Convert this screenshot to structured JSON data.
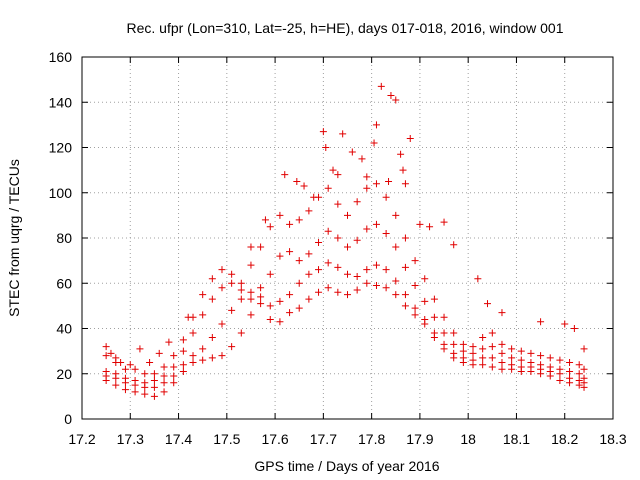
{
  "chart_data": {
    "type": "scatter",
    "title": "Rec. ufpr (Lon=310, Lat=-25, h=HE), days 017-018, 2016, window 001",
    "xlabel": "GPS time / Days of year 2016",
    "ylabel": "STEC from uqrg / TECUs",
    "xlim": [
      17.2,
      18.3
    ],
    "ylim": [
      0,
      160
    ],
    "xticks": [
      17.2,
      17.3,
      17.4,
      17.5,
      17.6,
      17.7,
      17.8,
      17.9,
      18.0,
      18.1,
      18.2,
      18.3
    ],
    "xtick_labels": [
      "17.2",
      "17.3",
      "17.4",
      "17.5",
      "17.6",
      "17.7",
      "17.8",
      "17.9",
      "18",
      "18.1",
      "18.2",
      "18.3"
    ],
    "yticks": [
      0,
      20,
      40,
      60,
      80,
      100,
      120,
      140,
      160
    ],
    "ytick_labels": [
      "0",
      "20",
      "40",
      "60",
      "80",
      "100",
      "120",
      "140",
      "160"
    ],
    "grid": true,
    "marker": "+",
    "marker_color": "#e00000",
    "series": [
      {
        "name": "STEC",
        "x": [
          17.25,
          17.27,
          17.29,
          17.31,
          17.33,
          17.35,
          17.37,
          17.39,
          17.41,
          17.43,
          17.45,
          17.47,
          17.49,
          17.51,
          17.53,
          17.55,
          17.57,
          17.59,
          17.61,
          17.63,
          17.65,
          17.67,
          17.69,
          17.71,
          17.73,
          17.75,
          17.77,
          17.79,
          17.81,
          17.83,
          17.85,
          17.87,
          17.89,
          17.91,
          17.93,
          17.95,
          17.97,
          17.99,
          18.01,
          18.03,
          18.05,
          18.07,
          18.09,
          18.11,
          18.13,
          18.15,
          18.17,
          18.19,
          18.21,
          18.23,
          18.24
        ],
        "y": [
          17,
          15,
          13,
          12,
          11,
          10,
          12,
          16,
          21,
          25,
          26,
          27,
          28,
          32,
          38,
          46,
          51,
          44,
          43,
          47,
          49,
          53,
          56,
          58,
          56,
          55,
          57,
          60,
          59,
          58,
          55,
          50,
          46,
          42,
          36,
          31,
          27,
          25,
          24,
          24,
          23,
          22,
          22,
          21,
          21,
          20,
          19,
          17,
          16,
          15,
          14
        ]
      },
      {
        "name": "STEC",
        "x": [
          17.25,
          17.27,
          17.29,
          17.31,
          17.33,
          17.35,
          17.37,
          17.39,
          17.41,
          17.43,
          17.45,
          17.47,
          17.49,
          17.51,
          17.53,
          17.55,
          17.57,
          17.59,
          17.61,
          17.63,
          17.65,
          17.67,
          17.69,
          17.71,
          17.73,
          17.75,
          17.77,
          17.79,
          17.81,
          17.83,
          17.85,
          17.87,
          17.89,
          17.91,
          17.93,
          17.95,
          17.97,
          17.99,
          18.01,
          18.03,
          18.05,
          18.07,
          18.09,
          18.11,
          18.13,
          18.15,
          18.17,
          18.19,
          18.21,
          18.23,
          18.24
        ],
        "y": [
          19,
          18,
          16,
          15,
          14,
          14,
          16,
          19,
          24,
          28,
          31,
          36,
          42,
          48,
          53,
          56,
          54,
          50,
          52,
          55,
          60,
          64,
          66,
          69,
          67,
          64,
          63,
          66,
          68,
          66,
          61,
          55,
          49,
          44,
          38,
          33,
          29,
          27,
          26,
          27,
          27,
          25,
          24,
          23,
          23,
          22,
          21,
          20,
          18,
          17,
          16
        ]
      },
      {
        "name": "STEC",
        "x": [
          17.25,
          17.27,
          17.29,
          17.31,
          17.33,
          17.35,
          17.37,
          17.39,
          17.41,
          17.43,
          17.45,
          17.47,
          17.49,
          17.51,
          17.53,
          17.55,
          17.57,
          17.59,
          17.61,
          17.63,
          17.65,
          17.67,
          17.69,
          17.71,
          17.73,
          17.75,
          17.77,
          17.79,
          17.81,
          17.83,
          17.85,
          17.87,
          17.89,
          17.91,
          17.93,
          17.95,
          17.97,
          17.99,
          18.01,
          18.03,
          18.05,
          18.07,
          18.09,
          18.11,
          18.13,
          18.15,
          18.17,
          18.19,
          18.21,
          18.23,
          18.24
        ],
        "y": [
          21,
          20,
          18,
          17,
          16,
          17,
          19,
          23,
          30,
          38,
          46,
          53,
          58,
          60,
          57,
          53,
          58,
          64,
          72,
          74,
          70,
          73,
          78,
          83,
          80,
          76,
          79,
          84,
          86,
          82,
          76,
          67,
          59,
          52,
          45,
          38,
          33,
          30,
          29,
          31,
          32,
          29,
          27,
          26,
          25,
          24,
          23,
          22,
          21,
          20,
          18
        ]
      },
      {
        "name": "STEC",
        "x": [
          17.25,
          17.27,
          17.29,
          17.31,
          17.33,
          17.35,
          17.37,
          17.39,
          17.41,
          17.43,
          17.45,
          17.47,
          17.49,
          17.51,
          17.53,
          17.55,
          17.57,
          17.59,
          17.61,
          17.63,
          17.65,
          17.67,
          17.69,
          17.71,
          17.73,
          17.75,
          17.77,
          17.79,
          17.81,
          17.83,
          17.85,
          17.87,
          17.89,
          17.91,
          17.93,
          17.95,
          17.97,
          17.99,
          18.01,
          18.03,
          18.05,
          18.07,
          18.09,
          18.11,
          18.13,
          18.15,
          18.17,
          18.19,
          18.21,
          18.23,
          18.24
        ],
        "y": [
          28,
          25,
          22,
          22,
          20,
          20,
          23,
          28,
          35,
          45,
          55,
          62,
          66,
          64,
          60,
          68,
          76,
          85,
          90,
          86,
          88,
          92,
          98,
          102,
          95,
          90,
          96,
          102,
          104,
          98,
          90,
          80,
          70,
          62,
          53,
          45,
          38,
          33,
          32,
          36,
          38,
          33,
          31,
          30,
          29,
          28,
          27,
          26,
          25,
          24,
          22
        ]
      },
      {
        "name": "STEC",
        "x": [
          17.25,
          17.26,
          17.27,
          17.28,
          17.3,
          17.32,
          17.34,
          17.36,
          17.38,
          17.42,
          17.55,
          17.58,
          17.62,
          17.645,
          17.66,
          17.68,
          17.7,
          17.705,
          17.72,
          17.73,
          17.74,
          17.76,
          17.78,
          17.79,
          17.805,
          17.81,
          17.82,
          17.835,
          17.84,
          17.85,
          17.86,
          17.865,
          17.87,
          17.88,
          17.9,
          17.92,
          17.95,
          17.97,
          18.02,
          18.04,
          18.07,
          18.15,
          18.2,
          18.22,
          18.24
        ],
        "y": [
          32,
          29,
          27,
          25,
          24,
          31,
          25,
          29,
          34,
          45,
          76,
          88,
          108,
          105,
          103,
          98,
          127,
          120,
          110,
          108,
          126,
          118,
          115,
          107,
          122,
          130,
          147,
          105,
          143,
          141,
          117,
          110,
          104,
          124,
          86,
          85,
          87,
          77,
          62,
          51,
          47,
          43,
          42,
          40,
          31
        ]
      }
    ]
  }
}
